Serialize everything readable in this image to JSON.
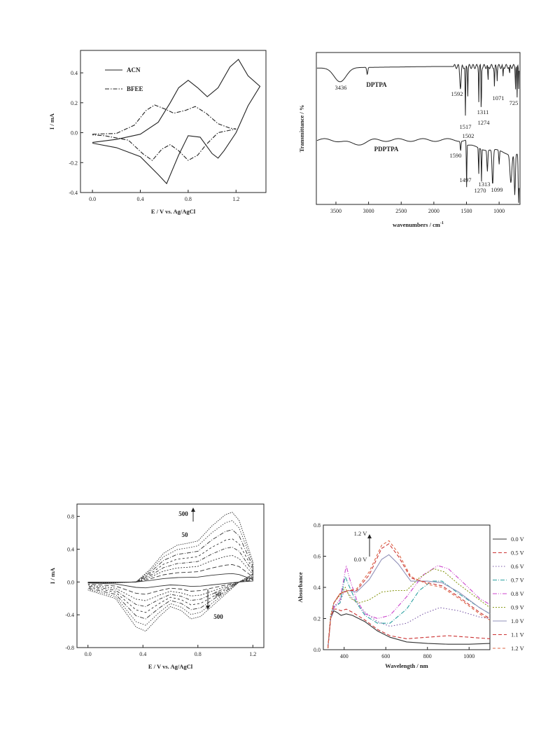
{
  "chart_data": [
    {
      "type": "line",
      "xlabel": "E / V vs. Ag/AgCl",
      "ylabel": "I / mA",
      "xlim": [
        -0.1,
        1.45
      ],
      "ylim": [
        -0.4,
        0.55
      ],
      "x_ticks": [
        "0.0",
        "0.4",
        "0.8",
        "1.2"
      ],
      "y_ticks": [
        "-0.4",
        "-0.2",
        "0.0",
        "0.2",
        "0.4"
      ],
      "legend_position": "top-left",
      "series": [
        {
          "name": "ACN",
          "style": "solid",
          "anodic": [
            [
              0.0,
              -0.065
            ],
            [
              0.2,
              -0.045
            ],
            [
              0.4,
              -0.01
            ],
            [
              0.55,
              0.07
            ],
            [
              0.65,
              0.2
            ],
            [
              0.72,
              0.3
            ],
            [
              0.8,
              0.35
            ],
            [
              0.88,
              0.3
            ],
            [
              0.96,
              0.24
            ],
            [
              1.05,
              0.3
            ],
            [
              1.15,
              0.44
            ],
            [
              1.22,
              0.49
            ],
            [
              1.3,
              0.38
            ],
            [
              1.4,
              0.31
            ]
          ],
          "cathodic": [
            [
              1.4,
              0.31
            ],
            [
              1.3,
              0.18
            ],
            [
              1.2,
              0.0
            ],
            [
              1.1,
              -0.12
            ],
            [
              1.05,
              -0.17
            ],
            [
              1.0,
              -0.14
            ],
            [
              0.9,
              -0.03
            ],
            [
              0.8,
              -0.02
            ],
            [
              0.72,
              -0.15
            ],
            [
              0.62,
              -0.34
            ],
            [
              0.55,
              -0.28
            ],
            [
              0.4,
              -0.16
            ],
            [
              0.2,
              -0.1
            ],
            [
              0.0,
              -0.07
            ]
          ]
        },
        {
          "name": "BFEE",
          "style": "dash-dot",
          "anodic": [
            [
              0.0,
              -0.01
            ],
            [
              0.2,
              -0.005
            ],
            [
              0.35,
              0.05
            ],
            [
              0.45,
              0.15
            ],
            [
              0.52,
              0.185
            ],
            [
              0.6,
              0.16
            ],
            [
              0.68,
              0.13
            ],
            [
              0.78,
              0.15
            ],
            [
              0.86,
              0.175
            ],
            [
              0.95,
              0.13
            ],
            [
              1.05,
              0.06
            ],
            [
              1.15,
              0.03
            ],
            [
              1.2,
              0.025
            ]
          ],
          "cathodic": [
            [
              1.2,
              0.025
            ],
            [
              1.05,
              0.0
            ],
            [
              0.95,
              -0.08
            ],
            [
              0.88,
              -0.15
            ],
            [
              0.8,
              -0.185
            ],
            [
              0.72,
              -0.12
            ],
            [
              0.65,
              -0.08
            ],
            [
              0.58,
              -0.11
            ],
            [
              0.5,
              -0.185
            ],
            [
              0.42,
              -0.14
            ],
            [
              0.3,
              -0.05
            ],
            [
              0.1,
              -0.02
            ],
            [
              0.0,
              -0.015
            ]
          ]
        }
      ]
    },
    {
      "type": "line",
      "xlabel": "wavenumbers / cm",
      "xlabel_sup": "-1",
      "ylabel": "Transmittance / %",
      "xlim": [
        3800,
        680
      ],
      "x_ticks": [
        "3500",
        "3000",
        "2500",
        "2000",
        "1500",
        "1000"
      ],
      "series": [
        {
          "name": "DPTPA",
          "peaks": [
            "3436",
            "1592",
            "1517",
            "1311",
            "1274",
            "1071",
            "725"
          ]
        },
        {
          "name": "PDPTPA",
          "peaks": [
            "1502",
            "1590",
            "1497",
            "1313",
            "1270",
            "1099"
          ]
        }
      ]
    },
    {
      "type": "line",
      "xlabel": "E / V vs. Ag/AgCl",
      "ylabel": "I / mA",
      "xlim": [
        -0.08,
        1.28
      ],
      "ylim": [
        -0.8,
        0.95
      ],
      "x_ticks": [
        "0.0",
        "0.4",
        "0.8",
        "1.2"
      ],
      "y_ticks": [
        "-0.8",
        "-0.4",
        "0.0",
        "0.4",
        "0.8"
      ],
      "annotations": [
        "500",
        "50",
        "50",
        "500"
      ],
      "scale_factors": [
        0.12,
        0.25,
        0.38,
        0.5,
        0.62,
        0.75,
        0.88,
        1.0
      ],
      "base_anodic": [
        [
          0.0,
          -0.01
        ],
        [
          0.2,
          -0.01
        ],
        [
          0.35,
          0.0
        ],
        [
          0.45,
          0.15
        ],
        [
          0.55,
          0.35
        ],
        [
          0.65,
          0.45
        ],
        [
          0.72,
          0.47
        ],
        [
          0.8,
          0.5
        ],
        [
          0.9,
          0.68
        ],
        [
          1.0,
          0.82
        ],
        [
          1.05,
          0.85
        ],
        [
          1.1,
          0.75
        ],
        [
          1.2,
          0.25
        ]
      ],
      "base_cathodic": [
        [
          1.2,
          0.1
        ],
        [
          1.1,
          0.0
        ],
        [
          1.0,
          -0.15
        ],
        [
          0.9,
          -0.3
        ],
        [
          0.82,
          -0.42
        ],
        [
          0.75,
          -0.45
        ],
        [
          0.68,
          -0.35
        ],
        [
          0.6,
          -0.3
        ],
        [
          0.52,
          -0.42
        ],
        [
          0.42,
          -0.6
        ],
        [
          0.35,
          -0.55
        ],
        [
          0.2,
          -0.2
        ],
        [
          0.0,
          -0.1
        ]
      ]
    },
    {
      "type": "line",
      "xlabel": "Wavelength / nm",
      "ylabel": "Absorbance",
      "xlim": [
        300,
        1100
      ],
      "ylim": [
        0.0,
        0.8
      ],
      "x_ticks": [
        "400",
        "600",
        "800",
        "1000"
      ],
      "y_ticks": [
        "0.0",
        "0.2",
        "0.4",
        "0.6",
        "0.8"
      ],
      "annotations": [
        "1.2 V",
        "0.0 V"
      ],
      "legend_position": "right",
      "series": [
        {
          "name": "0.0 V",
          "color": "#333333",
          "dash": "",
          "points": [
            [
              322,
              0.01
            ],
            [
              335,
              0.2
            ],
            [
              350,
              0.25
            ],
            [
              365,
              0.24
            ],
            [
              385,
              0.22
            ],
            [
              410,
              0.23
            ],
            [
              440,
              0.22
            ],
            [
              500,
              0.18
            ],
            [
              560,
              0.12
            ],
            [
              620,
              0.08
            ],
            [
              700,
              0.05
            ],
            [
              800,
              0.04
            ],
            [
              900,
              0.035
            ],
            [
              1000,
              0.035
            ],
            [
              1100,
              0.04
            ]
          ]
        },
        {
          "name": "0.5 V",
          "color": "#cc3333",
          "dash": "5,3",
          "points": [
            [
              322,
              0.01
            ],
            [
              335,
              0.2
            ],
            [
              350,
              0.26
            ],
            [
              365,
              0.26
            ],
            [
              385,
              0.25
            ],
            [
              410,
              0.26
            ],
            [
              440,
              0.24
            ],
            [
              500,
              0.19
            ],
            [
              560,
              0.13
            ],
            [
              620,
              0.09
            ],
            [
              700,
              0.07
            ],
            [
              800,
              0.08
            ],
            [
              900,
              0.09
            ],
            [
              1000,
              0.08
            ],
            [
              1100,
              0.07
            ]
          ]
        },
        {
          "name": "0.6 V",
          "color": "#7a5aa8",
          "dash": "1.5,2.5",
          "points": [
            [
              322,
              0.01
            ],
            [
              335,
              0.22
            ],
            [
              350,
              0.28
            ],
            [
              360,
              0.29
            ],
            [
              380,
              0.3
            ],
            [
              400,
              0.38
            ],
            [
              420,
              0.36
            ],
            [
              460,
              0.3
            ],
            [
              500,
              0.24
            ],
            [
              560,
              0.18
            ],
            [
              620,
              0.15
            ],
            [
              700,
              0.17
            ],
            [
              780,
              0.23
            ],
            [
              860,
              0.27
            ],
            [
              950,
              0.25
            ],
            [
              1050,
              0.21
            ],
            [
              1100,
              0.2
            ]
          ]
        },
        {
          "name": "0.7 V",
          "color": "#2aa0a0",
          "dash": "6,2,1,2",
          "points": [
            [
              322,
              0.01
            ],
            [
              335,
              0.2
            ],
            [
              350,
              0.27
            ],
            [
              380,
              0.3
            ],
            [
              405,
              0.47
            ],
            [
              420,
              0.42
            ],
            [
              460,
              0.3
            ],
            [
              500,
              0.22
            ],
            [
              560,
              0.17
            ],
            [
              620,
              0.17
            ],
            [
              700,
              0.26
            ],
            [
              760,
              0.38
            ],
            [
              820,
              0.44
            ],
            [
              870,
              0.44
            ],
            [
              950,
              0.36
            ],
            [
              1050,
              0.27
            ],
            [
              1100,
              0.23
            ]
          ]
        },
        {
          "name": "0.8 V",
          "color": "#cc44cc",
          "dash": "6,2,1,2,1,2",
          "points": [
            [
              322,
              0.01
            ],
            [
              335,
              0.2
            ],
            [
              350,
              0.27
            ],
            [
              380,
              0.32
            ],
            [
              410,
              0.54
            ],
            [
              425,
              0.46
            ],
            [
              460,
              0.32
            ],
            [
              500,
              0.23
            ],
            [
              560,
              0.2
            ],
            [
              620,
              0.22
            ],
            [
              700,
              0.34
            ],
            [
              780,
              0.48
            ],
            [
              850,
              0.54
            ],
            [
              900,
              0.52
            ],
            [
              980,
              0.42
            ],
            [
              1050,
              0.33
            ],
            [
              1100,
              0.29
            ]
          ]
        },
        {
          "name": "0.9 V",
          "color": "#8a9a1a",
          "dash": "2,2",
          "points": [
            [
              322,
              0.01
            ],
            [
              335,
              0.22
            ],
            [
              350,
              0.3
            ],
            [
              380,
              0.35
            ],
            [
              405,
              0.4
            ],
            [
              430,
              0.33
            ],
            [
              470,
              0.3
            ],
            [
              520,
              0.32
            ],
            [
              580,
              0.37
            ],
            [
              640,
              0.38
            ],
            [
              700,
              0.38
            ],
            [
              760,
              0.46
            ],
            [
              830,
              0.52
            ],
            [
              880,
              0.5
            ],
            [
              950,
              0.42
            ],
            [
              1050,
              0.32
            ],
            [
              1100,
              0.27
            ]
          ]
        },
        {
          "name": "1.0 V",
          "color": "#9090b8",
          "dash": "",
          "points": [
            [
              322,
              0.01
            ],
            [
              335,
              0.2
            ],
            [
              350,
              0.3
            ],
            [
              380,
              0.36
            ],
            [
              420,
              0.38
            ],
            [
              460,
              0.37
            ],
            [
              520,
              0.45
            ],
            [
              580,
              0.58
            ],
            [
              615,
              0.61
            ],
            [
              660,
              0.55
            ],
            [
              720,
              0.44
            ],
            [
              800,
              0.44
            ],
            [
              870,
              0.43
            ],
            [
              950,
              0.37
            ],
            [
              1050,
              0.27
            ],
            [
              1100,
              0.23
            ]
          ]
        },
        {
          "name": "1.1 V",
          "color": "#cc3333",
          "dash": "5,3",
          "points": [
            [
              322,
              0.01
            ],
            [
              335,
              0.2
            ],
            [
              350,
              0.3
            ],
            [
              380,
              0.36
            ],
            [
              420,
              0.38
            ],
            [
              460,
              0.38
            ],
            [
              520,
              0.48
            ],
            [
              580,
              0.65
            ],
            [
              615,
              0.68
            ],
            [
              660,
              0.6
            ],
            [
              720,
              0.46
            ],
            [
              800,
              0.43
            ],
            [
              870,
              0.41
            ],
            [
              950,
              0.34
            ],
            [
              1050,
              0.24
            ],
            [
              1100,
              0.2
            ]
          ]
        },
        {
          "name": "1.2 V",
          "color": "#dd6644",
          "dash": "4,3",
          "points": [
            [
              322,
              0.01
            ],
            [
              335,
              0.2
            ],
            [
              350,
              0.3
            ],
            [
              380,
              0.36
            ],
            [
              420,
              0.38
            ],
            [
              460,
              0.39
            ],
            [
              520,
              0.5
            ],
            [
              580,
              0.67
            ],
            [
              615,
              0.7
            ],
            [
              660,
              0.62
            ],
            [
              720,
              0.47
            ],
            [
              800,
              0.42
            ],
            [
              870,
              0.4
            ],
            [
              950,
              0.33
            ],
            [
              1050,
              0.23
            ],
            [
              1100,
              0.19
            ]
          ]
        }
      ]
    }
  ]
}
